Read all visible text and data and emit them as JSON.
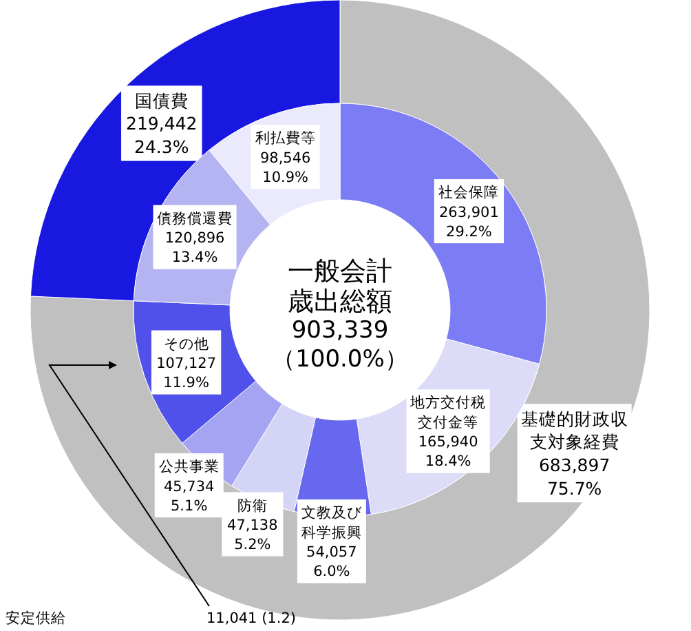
{
  "chart_data": [
    {
      "type": "donut",
      "title": "一般会計歳出総額",
      "subtitle": "903,339\n（100.0%）",
      "categories": [
        "基礎的財政収支対象経費",
        "国債費"
      ],
      "values": [
        683897,
        219442
      ],
      "colors": [
        "#c0c0c0",
        "#1818e0"
      ],
      "value_labels": [
        "683,897\n75.7%",
        "219,442\n24.3%"
      ]
    },
    {
      "type": "donut",
      "categories": [
        "社会保障",
        "地方交付税交付金等",
        "文教及び科学振興",
        "防衛",
        "公共事業",
        "その他",
        "債務償還費",
        "利払費等"
      ],
      "values": [
        263901,
        165940,
        54057,
        47138,
        45734,
        107127,
        120896,
        98546
      ],
      "colors": [
        "#7c7cf4",
        "#dcdcf8",
        "#6868ee",
        "#d4d4f6",
        "#a4a4f2",
        "#5050ea",
        "#b4b4f2",
        "#eaeafc"
      ],
      "value_labels": [
        "263,901\n29.2%",
        "165,940\n18.4%",
        "54,057\n6.0%",
        "47,138\n5.2%",
        "45,734\n5.1%",
        "107,127\n11.9%",
        "120,896\n13.4%",
        "98,546\n10.9%"
      ],
      "annotations": [
        "安定供給",
        "11,041 (1.2)"
      ]
    }
  ]
}
